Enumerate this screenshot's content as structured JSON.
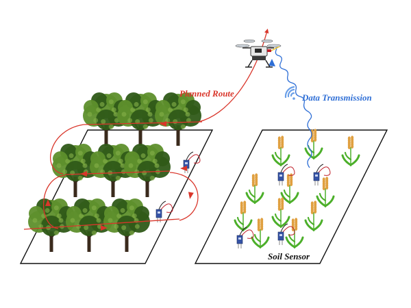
{
  "labels": {
    "planned_route": "Planned Route",
    "data_transmission": "Data Transmission",
    "soil_sensor": "Soil Sensor"
  },
  "colors": {
    "route": "#d9362b",
    "transmission": "#2f6fd6",
    "soil_label": "#111111",
    "tree_dark": "#2f5a18",
    "tree_light": "#5e8f2c",
    "trunk": "#3a2a1c",
    "wheat_head": "#e0a040",
    "wheat_leaf": "#4caf2a",
    "sensor_body": "#3553a6",
    "sensor_wire": "#c0202a",
    "outline": "#111111"
  },
  "icons": {
    "drone": "drone-icon",
    "wifi": "wifi-signal-icon",
    "tree": "tree-icon",
    "wheat": "wheat-plant-icon",
    "sensor": "soil-sensor-icon"
  }
}
